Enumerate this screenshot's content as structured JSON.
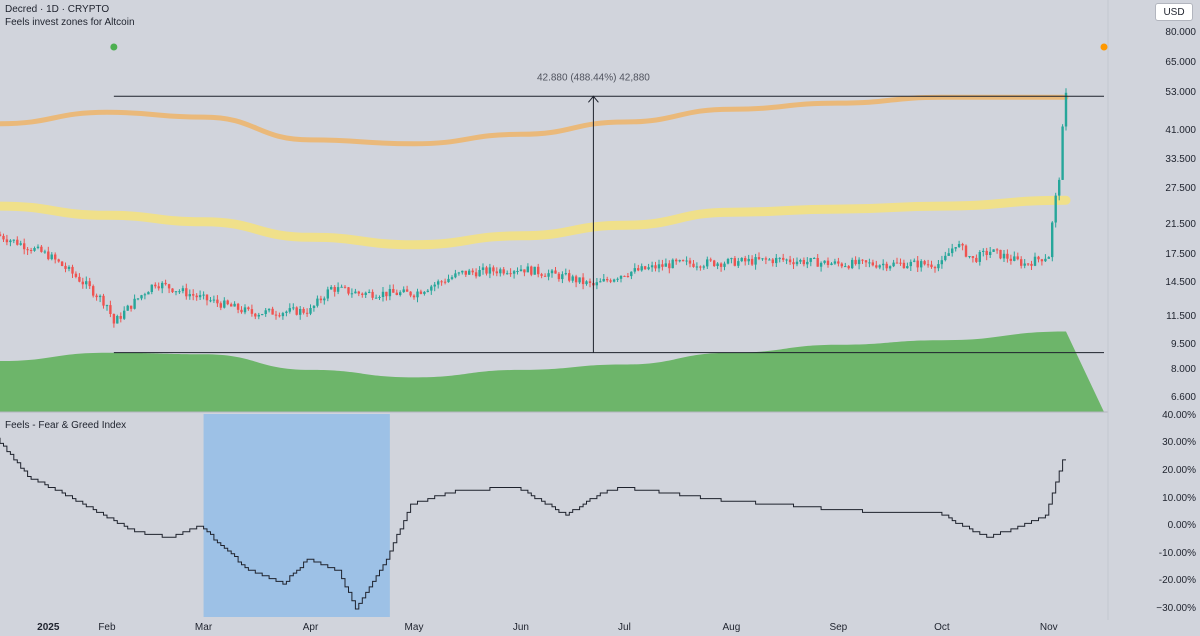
{
  "header": {
    "title": "Decred · 1D · CRYPTO",
    "subtitle": "Feels invest zones for Altcoin",
    "currency_button": "USD"
  },
  "indicator": {
    "title": "Feels - Fear & Greed Index"
  },
  "measure": {
    "label": "42.880 (488.44%) 42,880"
  },
  "colors": {
    "background": "#d1d4dc",
    "up_candle": "#26a69a",
    "down_candle": "#ef5350",
    "upper_band": "#eab97a",
    "mid_band": "#f0e08a",
    "lower_zone": "#6db56a",
    "highlight": "#9dc1e6",
    "dot_green": "#4caf50",
    "dot_orange": "#ff9800"
  },
  "chart_data": [
    {
      "type": "line",
      "panel": "price",
      "scale": "log",
      "ylim": [
        6.0,
        85.0
      ],
      "x_ticks": [
        "2025",
        "Feb",
        "Mar",
        "Apr",
        "May",
        "Jun",
        "Jul",
        "Aug",
        "Sep",
        "Oct",
        "Nov"
      ],
      "y_ticks": [
        "80.000",
        "65.000",
        "53.000",
        "41.000",
        "33.500",
        "27.500",
        "21.500",
        "17.500",
        "14.500",
        "11.500",
        "9.500",
        "8.000",
        "6.600"
      ],
      "x_range": [
        "2025-01-01",
        "2025-11-06"
      ],
      "series": [
        {
          "role": "price_candles",
          "x": [
            "2025-01-01",
            "2025-01-15",
            "2025-02-01",
            "2025-02-03",
            "2025-02-15",
            "2025-03-01",
            "2025-03-15",
            "2025-04-01",
            "2025-04-07",
            "2025-04-15",
            "2025-05-01",
            "2025-05-15",
            "2025-06-01",
            "2025-06-15",
            "2025-06-22",
            "2025-07-01",
            "2025-07-15",
            "2025-08-01",
            "2025-08-15",
            "2025-09-01",
            "2025-09-15",
            "2025-10-01",
            "2025-10-05",
            "2025-10-10",
            "2025-10-15",
            "2025-10-25",
            "2025-11-01",
            "2025-11-04",
            "2025-11-06"
          ],
          "y": [
            20.0,
            17.5,
            12.5,
            11.0,
            14.5,
            13.0,
            11.8,
            12.0,
            14.0,
            13.5,
            13.5,
            15.5,
            16.0,
            15.0,
            14.2,
            15.5,
            16.5,
            16.7,
            17.0,
            16.5,
            16.5,
            16.5,
            19.0,
            17.0,
            18.0,
            16.5,
            17.5,
            30.0,
            52.0
          ]
        },
        {
          "role": "upper_band",
          "x": [
            "2025-01-01",
            "2025-02-01",
            "2025-03-01",
            "2025-04-01",
            "2025-05-01",
            "2025-06-01",
            "2025-07-01",
            "2025-08-01",
            "2025-09-01",
            "2025-10-01",
            "2025-11-06"
          ],
          "y": [
            43.0,
            46.5,
            45.0,
            38.5,
            37.5,
            40.0,
            43.5,
            47.5,
            49.5,
            51.5,
            51.5
          ]
        },
        {
          "role": "mid_band",
          "x": [
            "2025-01-01",
            "2025-02-01",
            "2025-03-01",
            "2025-04-01",
            "2025-05-01",
            "2025-06-01",
            "2025-07-01",
            "2025-08-01",
            "2025-09-01",
            "2025-10-01",
            "2025-11-06"
          ],
          "y": [
            24.5,
            23.0,
            22.0,
            19.8,
            18.8,
            20.0,
            21.5,
            23.5,
            24.0,
            24.5,
            25.5
          ]
        },
        {
          "role": "lower_zone",
          "x": [
            "2025-01-01",
            "2025-02-01",
            "2025-03-01",
            "2025-04-01",
            "2025-05-01",
            "2025-06-01",
            "2025-07-01",
            "2025-08-01",
            "2025-09-01",
            "2025-10-01",
            "2025-11-06"
          ],
          "y": [
            8.5,
            9.0,
            8.9,
            8.0,
            7.6,
            8.0,
            8.3,
            9.0,
            9.5,
            9.8,
            10.4
          ]
        }
      ],
      "measure": {
        "from": 9.0,
        "to": 51.88,
        "change": 42.88,
        "percent": 488.44
      }
    },
    {
      "type": "line",
      "panel": "indicator",
      "title": "Feels - Fear & Greed Index",
      "ylim": [
        -34,
        41
      ],
      "y_ticks": [
        "40.00%",
        "30.00%",
        "20.00%",
        "10.00%",
        "0.00%",
        "-10.00%",
        "-20.00%",
        "−30.00%"
      ],
      "highlight_range": [
        "2025-03-01",
        "2025-04-24"
      ],
      "series": [
        {
          "x": [
            "2025-01-01",
            "2025-01-10",
            "2025-01-20",
            "2025-02-01",
            "2025-02-10",
            "2025-02-20",
            "2025-03-01",
            "2025-03-15",
            "2025-03-25",
            "2025-04-01",
            "2025-04-10",
            "2025-04-15",
            "2025-04-24",
            "2025-05-01",
            "2025-05-15",
            "2025-06-01",
            "2025-06-15",
            "2025-06-25",
            "2025-07-01",
            "2025-07-15",
            "2025-08-01",
            "2025-08-15",
            "2025-09-01",
            "2025-09-15",
            "2025-10-01",
            "2025-10-05",
            "2025-10-15",
            "2025-10-25",
            "2025-11-01",
            "2025-11-06"
          ],
          "y": [
            32,
            18,
            12,
            4,
            -2,
            -4,
            0,
            -16,
            -21,
            -12,
            -16,
            -30,
            -12,
            8,
            13,
            14,
            4,
            12,
            14,
            12,
            9,
            8,
            6,
            5,
            5,
            2,
            -4,
            0,
            4,
            24
          ]
        }
      ]
    }
  ]
}
